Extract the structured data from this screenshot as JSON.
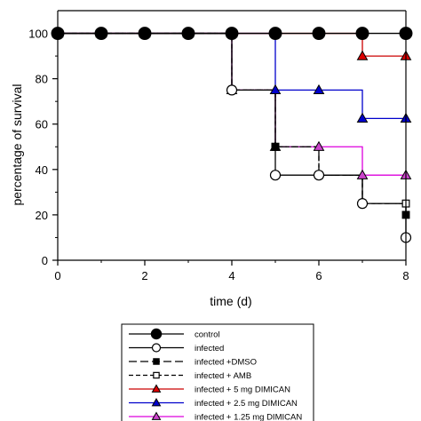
{
  "chart_data": {
    "type": "line",
    "step": true,
    "xlabel": "time (d)",
    "ylabel": "percentage of survival",
    "xlim": [
      0,
      8
    ],
    "ylim": [
      0,
      110
    ],
    "xticks": [
      0,
      2,
      4,
      6,
      8
    ],
    "yticks": [
      0,
      20,
      40,
      60,
      80,
      100
    ],
    "grid": false,
    "legend_position": "bottom",
    "series": [
      {
        "name": "control",
        "color": "#000000",
        "dash": "solid",
        "marker": "circle-large",
        "fill": "#000000",
        "x": [
          0,
          1,
          2,
          3,
          4,
          5,
          6,
          7,
          8
        ],
        "y": [
          100,
          100,
          100,
          100,
          100,
          100,
          100,
          100,
          100
        ]
      },
      {
        "name": "infected",
        "color": "#000000",
        "dash": "solid",
        "marker": "circle",
        "fill": "#ffffff",
        "x": [
          0,
          1,
          2,
          3,
          4,
          5,
          6,
          7,
          8
        ],
        "y": [
          100,
          100,
          100,
          100,
          75,
          37.5,
          37.5,
          25,
          10
        ]
      },
      {
        "name": "infected +DMSO",
        "color": "#000000",
        "dash": "longdash",
        "marker": "square",
        "fill": "#000000",
        "x": [
          0,
          1,
          2,
          3,
          4,
          5,
          6,
          7,
          8
        ],
        "y": [
          100,
          100,
          100,
          100,
          75,
          50,
          37.5,
          25,
          20
        ]
      },
      {
        "name": "infected + AMB",
        "color": "#000000",
        "dash": "dash",
        "marker": "square",
        "fill": "#ffffff",
        "x": [
          0,
          1,
          2,
          3,
          4,
          5,
          6,
          7,
          8
        ],
        "y": [
          100,
          100,
          100,
          100,
          75,
          50,
          37.5,
          25,
          25
        ]
      },
      {
        "name": "infected + 5 mg DIMICAN",
        "color": "#cc0000",
        "dash": "solid",
        "marker": "triangle",
        "fill": "#dd0000",
        "x": [
          0,
          1,
          2,
          3,
          4,
          5,
          6,
          7,
          8
        ],
        "y": [
          100,
          100,
          100,
          100,
          100,
          100,
          100,
          90,
          90
        ]
      },
      {
        "name": "infected + 2.5 mg DIMICAN",
        "color": "#0000cc",
        "dash": "solid",
        "marker": "triangle",
        "fill": "#0000cc",
        "x": [
          0,
          1,
          2,
          3,
          4,
          5,
          6,
          7,
          8
        ],
        "y": [
          100,
          100,
          100,
          100,
          100,
          75,
          75,
          62.5,
          62.5
        ]
      },
      {
        "name": "infected + 1.25 mg DIMICAN",
        "color": "#dd00dd",
        "dash": "solid",
        "marker": "triangle",
        "fill": "#cc44cc",
        "x": [
          0,
          1,
          2,
          3,
          4,
          5,
          6,
          7,
          8
        ],
        "y": [
          100,
          100,
          100,
          100,
          75,
          50,
          50,
          37.5,
          37.5
        ]
      }
    ]
  }
}
